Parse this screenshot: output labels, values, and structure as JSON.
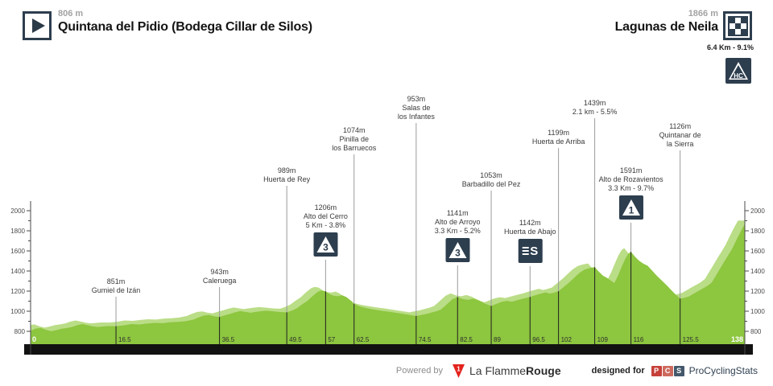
{
  "header": {
    "start": {
      "elevation": "806 m",
      "name": "Quintana del Pidio (Bodega Cillar de Silos)"
    },
    "finish": {
      "elevation": "1866 m",
      "name": "Lagunas de Neila",
      "climb_info": "6.4 Km - 9.1%",
      "climb_cat": "HC"
    }
  },
  "footer": {
    "powered_by": "Powered by",
    "lfr_regular": "La Flamme",
    "lfr_bold": "Rouge",
    "lfr_badge": "1",
    "designed_for": "designed for",
    "pcs_letters": {
      "p": "P",
      "c": "C",
      "s": "S"
    },
    "pcs_name": "ProCyclingStats"
  },
  "colors": {
    "profile_green": "#8dc63f",
    "profile_light": "#badd87",
    "dark_navy": "#2d3e4e",
    "black_bar": "#121212",
    "marker_gray": "#9b9b9b",
    "marker_dark": "#1f1f1f",
    "axis": "#4a4a4a",
    "footer_red": "#e3231e"
  },
  "icons": {
    "sprint_glyph": "S"
  },
  "chart_data": {
    "type": "area",
    "x_unit": "km",
    "y_unit": "m",
    "xlim": [
      0,
      138
    ],
    "ylim": [
      800,
      2000
    ],
    "grid": false,
    "y_ticks": [
      800,
      1000,
      1200,
      1400,
      1600,
      1800,
      2000
    ],
    "x_ticks": [
      "0",
      "16.5",
      "36.5",
      "49.5",
      "57",
      "62.5",
      "74.5",
      "82.5",
      "89",
      "96.5",
      "102",
      "109",
      "116",
      "125.5",
      "138"
    ],
    "waypoints": [
      {
        "km": 16.5,
        "elev": "851m",
        "name": [
          "Gumiel de Izán"
        ],
        "icon": null,
        "label_top": 345
      },
      {
        "km": 36.5,
        "elev": "943m",
        "name": [
          "Caleruega"
        ],
        "icon": null,
        "label_top": 333
      },
      {
        "km": 49.5,
        "elev": "989m",
        "name": [
          "Huerta de Rey"
        ],
        "icon": null,
        "label_top": 207
      },
      {
        "km": 57,
        "elev": "1206m",
        "name": [
          "Alto del Cerro",
          "5 Km - 3.8%"
        ],
        "icon": "3",
        "label_top": 253
      },
      {
        "km": 62.5,
        "elev": "1074m",
        "name": [
          "Pinilla de",
          "los Barruecos"
        ],
        "icon": null,
        "label_top": 157
      },
      {
        "km": 74.5,
        "elev": "953m",
        "name": [
          "Salas de",
          "los Infantes"
        ],
        "icon": null,
        "label_top": 118
      },
      {
        "km": 82.5,
        "elev": "1141m",
        "name": [
          "Alto de Arroyo",
          "3.3 Km - 5.2%"
        ],
        "icon": "3",
        "label_top": 260
      },
      {
        "km": 89,
        "elev": "1053m",
        "name": [
          "Barbadillo del Pez"
        ],
        "icon": null,
        "label_top": 213
      },
      {
        "km": 96.5,
        "elev": "1142m",
        "name": [
          "Huerta de Abajo"
        ],
        "icon": "sprint",
        "label_top": 272
      },
      {
        "km": 102,
        "elev": "1199m",
        "name": [
          "Huerta de Arriba"
        ],
        "icon": null,
        "label_top": 160
      },
      {
        "km": 109,
        "elev": "1439m",
        "name": [
          "2.1 km - 5.5%"
        ],
        "icon": null,
        "label_top": 123
      },
      {
        "km": 116,
        "elev": "1591m",
        "name": [
          "Alto de Rozavientos",
          "3.3 Km - 9.7%"
        ],
        "icon": "1",
        "label_top": 207
      },
      {
        "km": 125.5,
        "elev": "1126m",
        "name": [
          "Quintanar de",
          "la Sierra"
        ],
        "icon": null,
        "label_top": 152
      }
    ],
    "profile": [
      [
        0,
        806
      ],
      [
        1,
        828
      ],
      [
        2,
        833
      ],
      [
        3,
        814
      ],
      [
        4,
        801
      ],
      [
        5,
        812
      ],
      [
        6,
        826
      ],
      [
        7,
        833
      ],
      [
        8,
        843
      ],
      [
        9,
        861
      ],
      [
        10,
        872
      ],
      [
        11,
        861
      ],
      [
        12,
        849
      ],
      [
        13,
        843
      ],
      [
        14,
        848
      ],
      [
        15,
        852
      ],
      [
        16.5,
        851
      ],
      [
        18,
        859
      ],
      [
        19.5,
        872
      ],
      [
        21,
        868
      ],
      [
        22.5,
        877
      ],
      [
        24,
        884
      ],
      [
        25.5,
        881
      ],
      [
        27,
        890
      ],
      [
        28.5,
        894
      ],
      [
        30,
        901
      ],
      [
        31.5,
        917
      ],
      [
        32.5,
        939
      ],
      [
        33.5,
        957
      ],
      [
        34.5,
        962
      ],
      [
        35.5,
        949
      ],
      [
        36.5,
        943
      ],
      [
        37.5,
        959
      ],
      [
        38.5,
        973
      ],
      [
        39.5,
        989
      ],
      [
        40.5,
        1001
      ],
      [
        41.5,
        993
      ],
      [
        42.5,
        985
      ],
      [
        43.5,
        993
      ],
      [
        44.5,
        1000
      ],
      [
        45.5,
        1005
      ],
      [
        46.5,
        1001
      ],
      [
        47.5,
        995
      ],
      [
        48.5,
        991
      ],
      [
        49.5,
        989
      ],
      [
        50.5,
        1006
      ],
      [
        51.5,
        1031
      ],
      [
        52.5,
        1069
      ],
      [
        53.5,
        1103
      ],
      [
        54.5,
        1151
      ],
      [
        55.5,
        1193
      ],
      [
        56.2,
        1206
      ],
      [
        57,
        1198
      ],
      [
        57.8,
        1169
      ],
      [
        58.6,
        1153
      ],
      [
        59.4,
        1149
      ],
      [
        60.2,
        1159
      ],
      [
        61,
        1141
      ],
      [
        62,
        1101
      ],
      [
        62.5,
        1074
      ],
      [
        63.5,
        1049
      ],
      [
        65,
        1029
      ],
      [
        66.5,
        1015
      ],
      [
        68,
        1003
      ],
      [
        69.5,
        993
      ],
      [
        71,
        981
      ],
      [
        72.5,
        969
      ],
      [
        74.5,
        953
      ],
      [
        75.5,
        963
      ],
      [
        76.5,
        973
      ],
      [
        77.5,
        987
      ],
      [
        78.5,
        1001
      ],
      [
        79.3,
        1017
      ],
      [
        80,
        1049
      ],
      [
        80.8,
        1086
      ],
      [
        81.5,
        1119
      ],
      [
        82.5,
        1141
      ],
      [
        83.5,
        1121
      ],
      [
        84.5,
        1113
      ],
      [
        85.5,
        1125
      ],
      [
        86.5,
        1109
      ],
      [
        87.5,
        1083
      ],
      [
        88.3,
        1065
      ],
      [
        89,
        1053
      ],
      [
        90,
        1073
      ],
      [
        91,
        1093
      ],
      [
        92,
        1103
      ],
      [
        93,
        1095
      ],
      [
        94,
        1109
      ],
      [
        95,
        1123
      ],
      [
        96.5,
        1142
      ],
      [
        97.5,
        1159
      ],
      [
        98.5,
        1173
      ],
      [
        99.5,
        1187
      ],
      [
        100.3,
        1175
      ],
      [
        101,
        1183
      ],
      [
        102,
        1199
      ],
      [
        103,
        1241
      ],
      [
        104,
        1283
      ],
      [
        105,
        1331
      ],
      [
        106,
        1379
      ],
      [
        107,
        1413
      ],
      [
        108,
        1429
      ],
      [
        109,
        1439
      ],
      [
        109.8,
        1393
      ],
      [
        110.6,
        1353
      ],
      [
        111.4,
        1331
      ],
      [
        112.2,
        1301
      ],
      [
        112.8,
        1281
      ],
      [
        113.5,
        1353
      ],
      [
        114.2,
        1441
      ],
      [
        114.9,
        1521
      ],
      [
        115.5,
        1573
      ],
      [
        116,
        1591
      ],
      [
        116.8,
        1541
      ],
      [
        117.6,
        1501
      ],
      [
        118.4,
        1473
      ],
      [
        119.2,
        1453
      ],
      [
        120,
        1409
      ],
      [
        121,
        1353
      ],
      [
        122,
        1303
      ],
      [
        123,
        1253
      ],
      [
        124,
        1199
      ],
      [
        124.8,
        1157
      ],
      [
        125.5,
        1126
      ],
      [
        126.3,
        1133
      ],
      [
        127.2,
        1147
      ],
      [
        128,
        1171
      ],
      [
        129,
        1201
      ],
      [
        130,
        1229
      ],
      [
        130.8,
        1253
      ],
      [
        131.6,
        1285
      ],
      [
        132.4,
        1353
      ],
      [
        133.2,
        1421
      ],
      [
        134,
        1491
      ],
      [
        134.8,
        1557
      ],
      [
        135.6,
        1625
      ],
      [
        136.3,
        1701
      ],
      [
        137,
        1773
      ],
      [
        137.6,
        1831
      ],
      [
        138,
        1866
      ]
    ]
  }
}
